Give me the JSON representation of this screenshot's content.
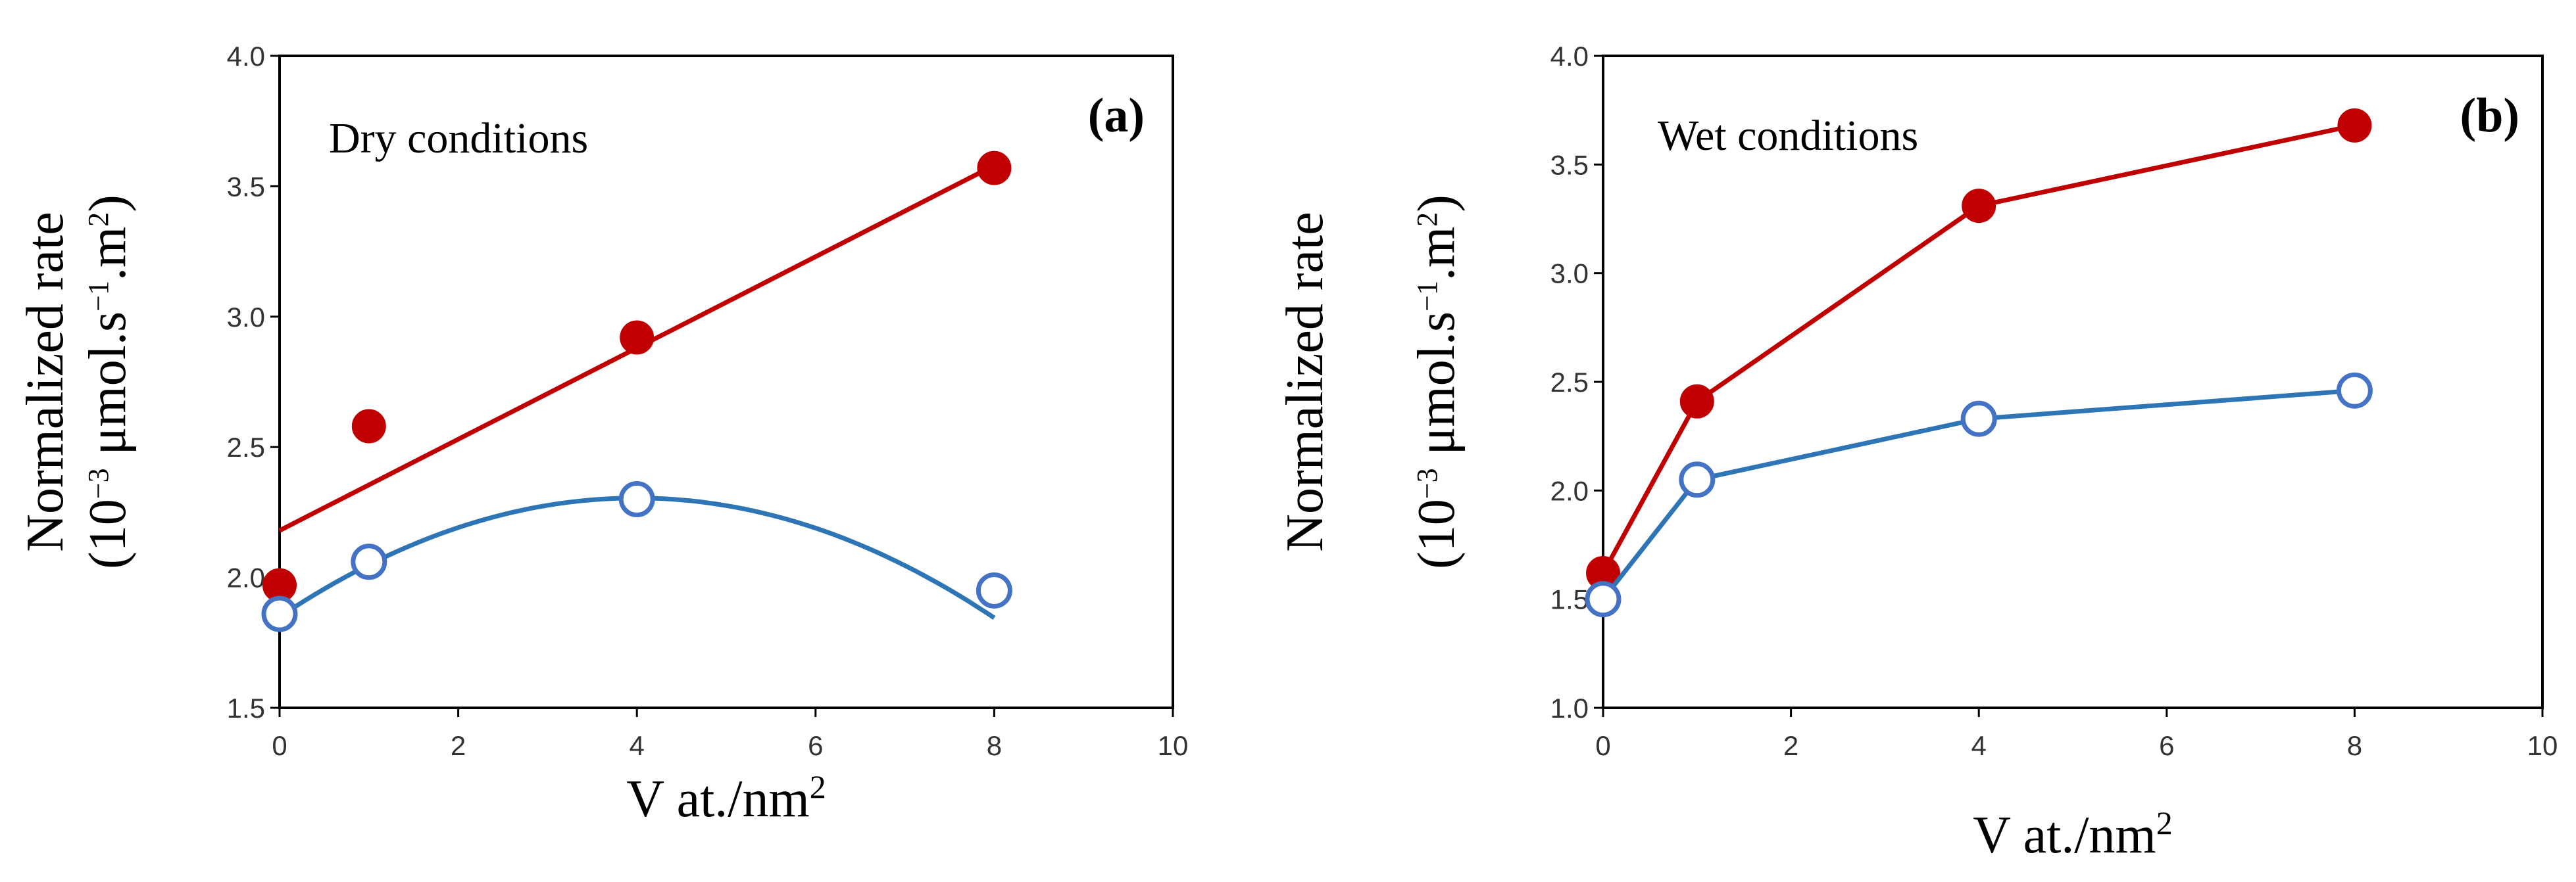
{
  "figure": {
    "ylabel_main": "Normalized rate",
    "ylabel_open": "(10",
    "ylabel_exp": "−3",
    "ylabel_mid": " μmol.s",
    "ylabel_exp2": "−1",
    "ylabel_end": ".m",
    "ylabel_exp3": "2",
    "ylabel_close": ")",
    "xlabel_base": "V at./nm",
    "xlabel_sup": "2"
  },
  "colors": {
    "red": "#C00000",
    "blue": "#4472C4",
    "blue_line": "#2E75B6",
    "axis": "#000000"
  },
  "chart_data": [
    {
      "type": "scatter",
      "panel_label": "(a)",
      "annotation": "Dry conditions",
      "xlim": [
        0,
        10
      ],
      "ylim": [
        1.5,
        4.0
      ],
      "xticks": [
        0,
        2,
        4,
        6,
        8,
        10
      ],
      "yticks": [
        1.5,
        2.0,
        2.5,
        3.0,
        3.5,
        4.0
      ],
      "xtick_labels": [
        "0",
        "2",
        "4",
        "6",
        "8",
        "10"
      ],
      "ytick_labels": [
        "1.5",
        "2.0",
        "2.5",
        "3.0",
        "3.5",
        "4.0"
      ],
      "series": [
        {
          "name": "red-filled",
          "marker": "filled-circle",
          "x": [
            0,
            1,
            4,
            8
          ],
          "y": [
            1.97,
            2.58,
            2.92,
            3.57
          ],
          "fit": {
            "kind": "linear",
            "slope": 0.175,
            "intercept": 2.18,
            "x_range": [
              0,
              8
            ]
          }
        },
        {
          "name": "blue-open",
          "marker": "open-circle",
          "x": [
            0,
            1,
            4,
            8
          ],
          "y": [
            1.86,
            2.06,
            2.3,
            1.95
          ],
          "fit": {
            "kind": "quadratic",
            "a": -0.0286,
            "b": 0.2283,
            "c": 1.849,
            "x_range": [
              0,
              8
            ]
          }
        }
      ]
    },
    {
      "type": "line",
      "panel_label": "(b)",
      "annotation": "Wet conditions",
      "xlim": [
        0,
        10
      ],
      "ylim": [
        1.0,
        4.0
      ],
      "xticks": [
        0,
        2,
        4,
        6,
        8,
        10
      ],
      "yticks": [
        1.0,
        1.5,
        2.0,
        2.5,
        3.0,
        3.5,
        4.0
      ],
      "xtick_labels": [
        "0",
        "2",
        "4",
        "6",
        "8",
        "10"
      ],
      "ytick_labels": [
        "1.0",
        "1.5",
        "2.0",
        "2.5",
        "3.0",
        "3.5",
        "4.0"
      ],
      "series": [
        {
          "name": "red-filled",
          "marker": "filled-circle",
          "x": [
            0,
            1,
            4,
            8
          ],
          "y": [
            1.62,
            2.41,
            3.31,
            3.68
          ]
        },
        {
          "name": "blue-open",
          "marker": "open-circle",
          "x": [
            0,
            1,
            4,
            8
          ],
          "y": [
            1.5,
            2.05,
            2.33,
            2.46
          ]
        }
      ]
    }
  ]
}
